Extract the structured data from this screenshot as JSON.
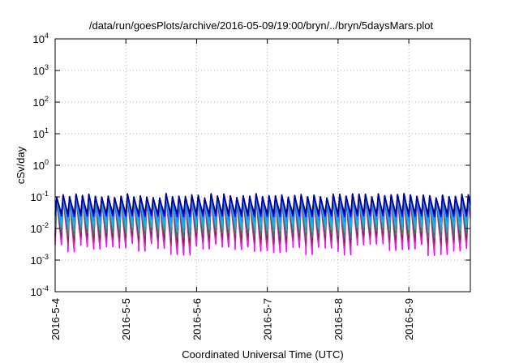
{
  "chart_data": {
    "type": "line",
    "title": "/data/run/goesPlots/archive/2016-05-09/19:00/bryn/../bryn/5daysMars.plot",
    "xlabel": "Coordinated Universal Time (UTC)",
    "ylabel": "cSv/day",
    "y_scale": "log",
    "ylim_exp": [
      -4,
      4
    ],
    "y_ticks": [
      {
        "exp": -4,
        "base": "10"
      },
      {
        "exp": -3,
        "base": "10"
      },
      {
        "exp": -2,
        "base": "10"
      },
      {
        "exp": -1,
        "base": "10"
      },
      {
        "exp": 0,
        "base": "10"
      },
      {
        "exp": 1,
        "base": "10"
      },
      {
        "exp": 2,
        "base": "10"
      },
      {
        "exp": 3,
        "base": "10"
      },
      {
        "exp": 4,
        "base": "10"
      }
    ],
    "x_range_days": [
      0,
      5.87
    ],
    "x_ticks": [
      {
        "day": 0,
        "label": "2016-5-4"
      },
      {
        "day": 1,
        "label": "2016-5-5"
      },
      {
        "day": 2,
        "label": "2016-5-6"
      },
      {
        "day": 3,
        "label": "2016-5-7"
      },
      {
        "day": 4,
        "label": "2016-5-8"
      },
      {
        "day": 5,
        "label": "2016-5-9"
      }
    ],
    "grid": true,
    "pattern": {
      "cycles_per_day": 11,
      "peak_value_range": [
        0.05,
        0.13
      ],
      "trough_value_range": [
        0.0012,
        0.004
      ]
    },
    "series": [
      {
        "color": "#ff00ff",
        "level": 0.0
      },
      {
        "color": "#cc33cc",
        "level": 0.12
      },
      {
        "color": "#b03060",
        "level": 0.22
      },
      {
        "color": "#8b2252",
        "level": 0.3
      },
      {
        "color": "#2e8b57",
        "level": 0.42
      },
      {
        "color": "#20b2aa",
        "level": 0.55
      },
      {
        "color": "#00bfff",
        "level": 0.68
      },
      {
        "color": "#1e90ff",
        "level": 0.8
      },
      {
        "color": "#0000ff",
        "level": 0.92
      },
      {
        "color": "#00008b",
        "level": 1.0
      }
    ]
  }
}
